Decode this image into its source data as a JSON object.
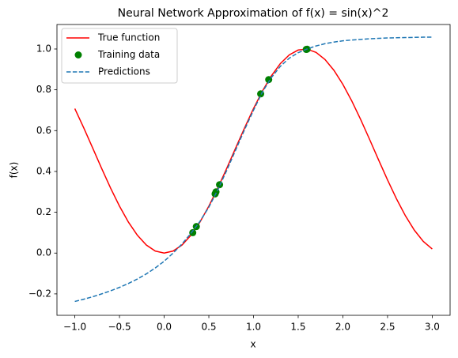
{
  "chart_data": {
    "type": "line",
    "title": "Neural Network Approximation of f(x) = sin(x)^2",
    "x_label": "x",
    "y_label": "f(x)",
    "x": [
      -1.0,
      -0.9,
      -0.8,
      -0.7,
      -0.6,
      -0.5,
      -0.4,
      -0.3,
      -0.2,
      -0.1,
      0.0,
      0.1,
      0.2,
      0.3,
      0.4,
      0.5,
      0.6,
      0.7,
      0.8,
      0.9,
      1.0,
      1.1,
      1.2,
      1.3,
      1.4,
      1.5,
      1.6,
      1.7,
      1.8,
      1.9,
      2.0,
      2.1,
      2.2,
      2.3,
      2.4,
      2.5,
      2.6,
      2.7,
      2.8,
      2.9,
      3.0
    ],
    "series": [
      {
        "name": "True function",
        "type": "line",
        "style": "solid",
        "color": "#ff0000",
        "values": [
          0.708,
          0.6136,
          0.5146,
          0.415,
          0.3188,
          0.2298,
          0.1516,
          0.0873,
          0.0395,
          0.01,
          0.0,
          0.01,
          0.0395,
          0.0873,
          0.1516,
          0.2298,
          0.3188,
          0.415,
          0.5146,
          0.6136,
          0.7081,
          0.7942,
          0.8687,
          0.9284,
          0.9711,
          0.995,
          0.9991,
          0.9834,
          0.9484,
          0.8955,
          0.8268,
          0.7451,
          0.6537,
          0.5561,
          0.4563,
          0.3582,
          0.2658,
          0.1827,
          0.1122,
          0.0572,
          0.0199
        ]
      },
      {
        "name": "Training data",
        "type": "scatter",
        "color": "#008000",
        "x": [
          0.32,
          0.36,
          0.57,
          0.58,
          0.62,
          1.08,
          1.17,
          1.59,
          1.6
        ],
        "values": [
          0.1,
          0.13,
          0.29,
          0.3,
          0.335,
          0.78,
          0.85,
          0.998,
          0.999
        ]
      },
      {
        "name": "Predictions",
        "type": "line",
        "style": "dashed",
        "color": "#1f77b4",
        "values": [
          -0.237,
          -0.226,
          -0.214,
          -0.2,
          -0.185,
          -0.168,
          -0.149,
          -0.127,
          -0.102,
          -0.073,
          -0.04,
          0.0,
          0.045,
          0.097,
          0.155,
          0.225,
          0.31,
          0.405,
          0.505,
          0.605,
          0.7,
          0.79,
          0.86,
          0.915,
          0.955,
          0.982,
          1.0,
          1.015,
          1.026,
          1.034,
          1.04,
          1.044,
          1.047,
          1.05,
          1.052,
          1.054,
          1.055,
          1.056,
          1.057,
          1.058,
          1.058
        ]
      }
    ],
    "xlim": [
      -1.2,
      3.2
    ],
    "ylim": [
      -0.305,
      1.12
    ],
    "xticks": [
      {
        "value": -1.0,
        "label": "−1.0"
      },
      {
        "value": -0.5,
        "label": "−0.5"
      },
      {
        "value": 0.0,
        "label": "0.0"
      },
      0.5,
      {
        "value": 1.0,
        "label": "1.0"
      },
      1.5,
      {
        "value": 2.0,
        "label": "2.0"
      },
      2.5,
      {
        "value": 3.0,
        "label": "3.0"
      }
    ],
    "yticks": [
      {
        "value": -0.2,
        "label": "−0.2"
      },
      {
        "value": 0.0,
        "label": "0.0"
      },
      0.2,
      0.4,
      0.6,
      0.8,
      {
        "value": 1.0,
        "label": "1.0"
      }
    ],
    "legend": "upper left",
    "grid": false
  }
}
